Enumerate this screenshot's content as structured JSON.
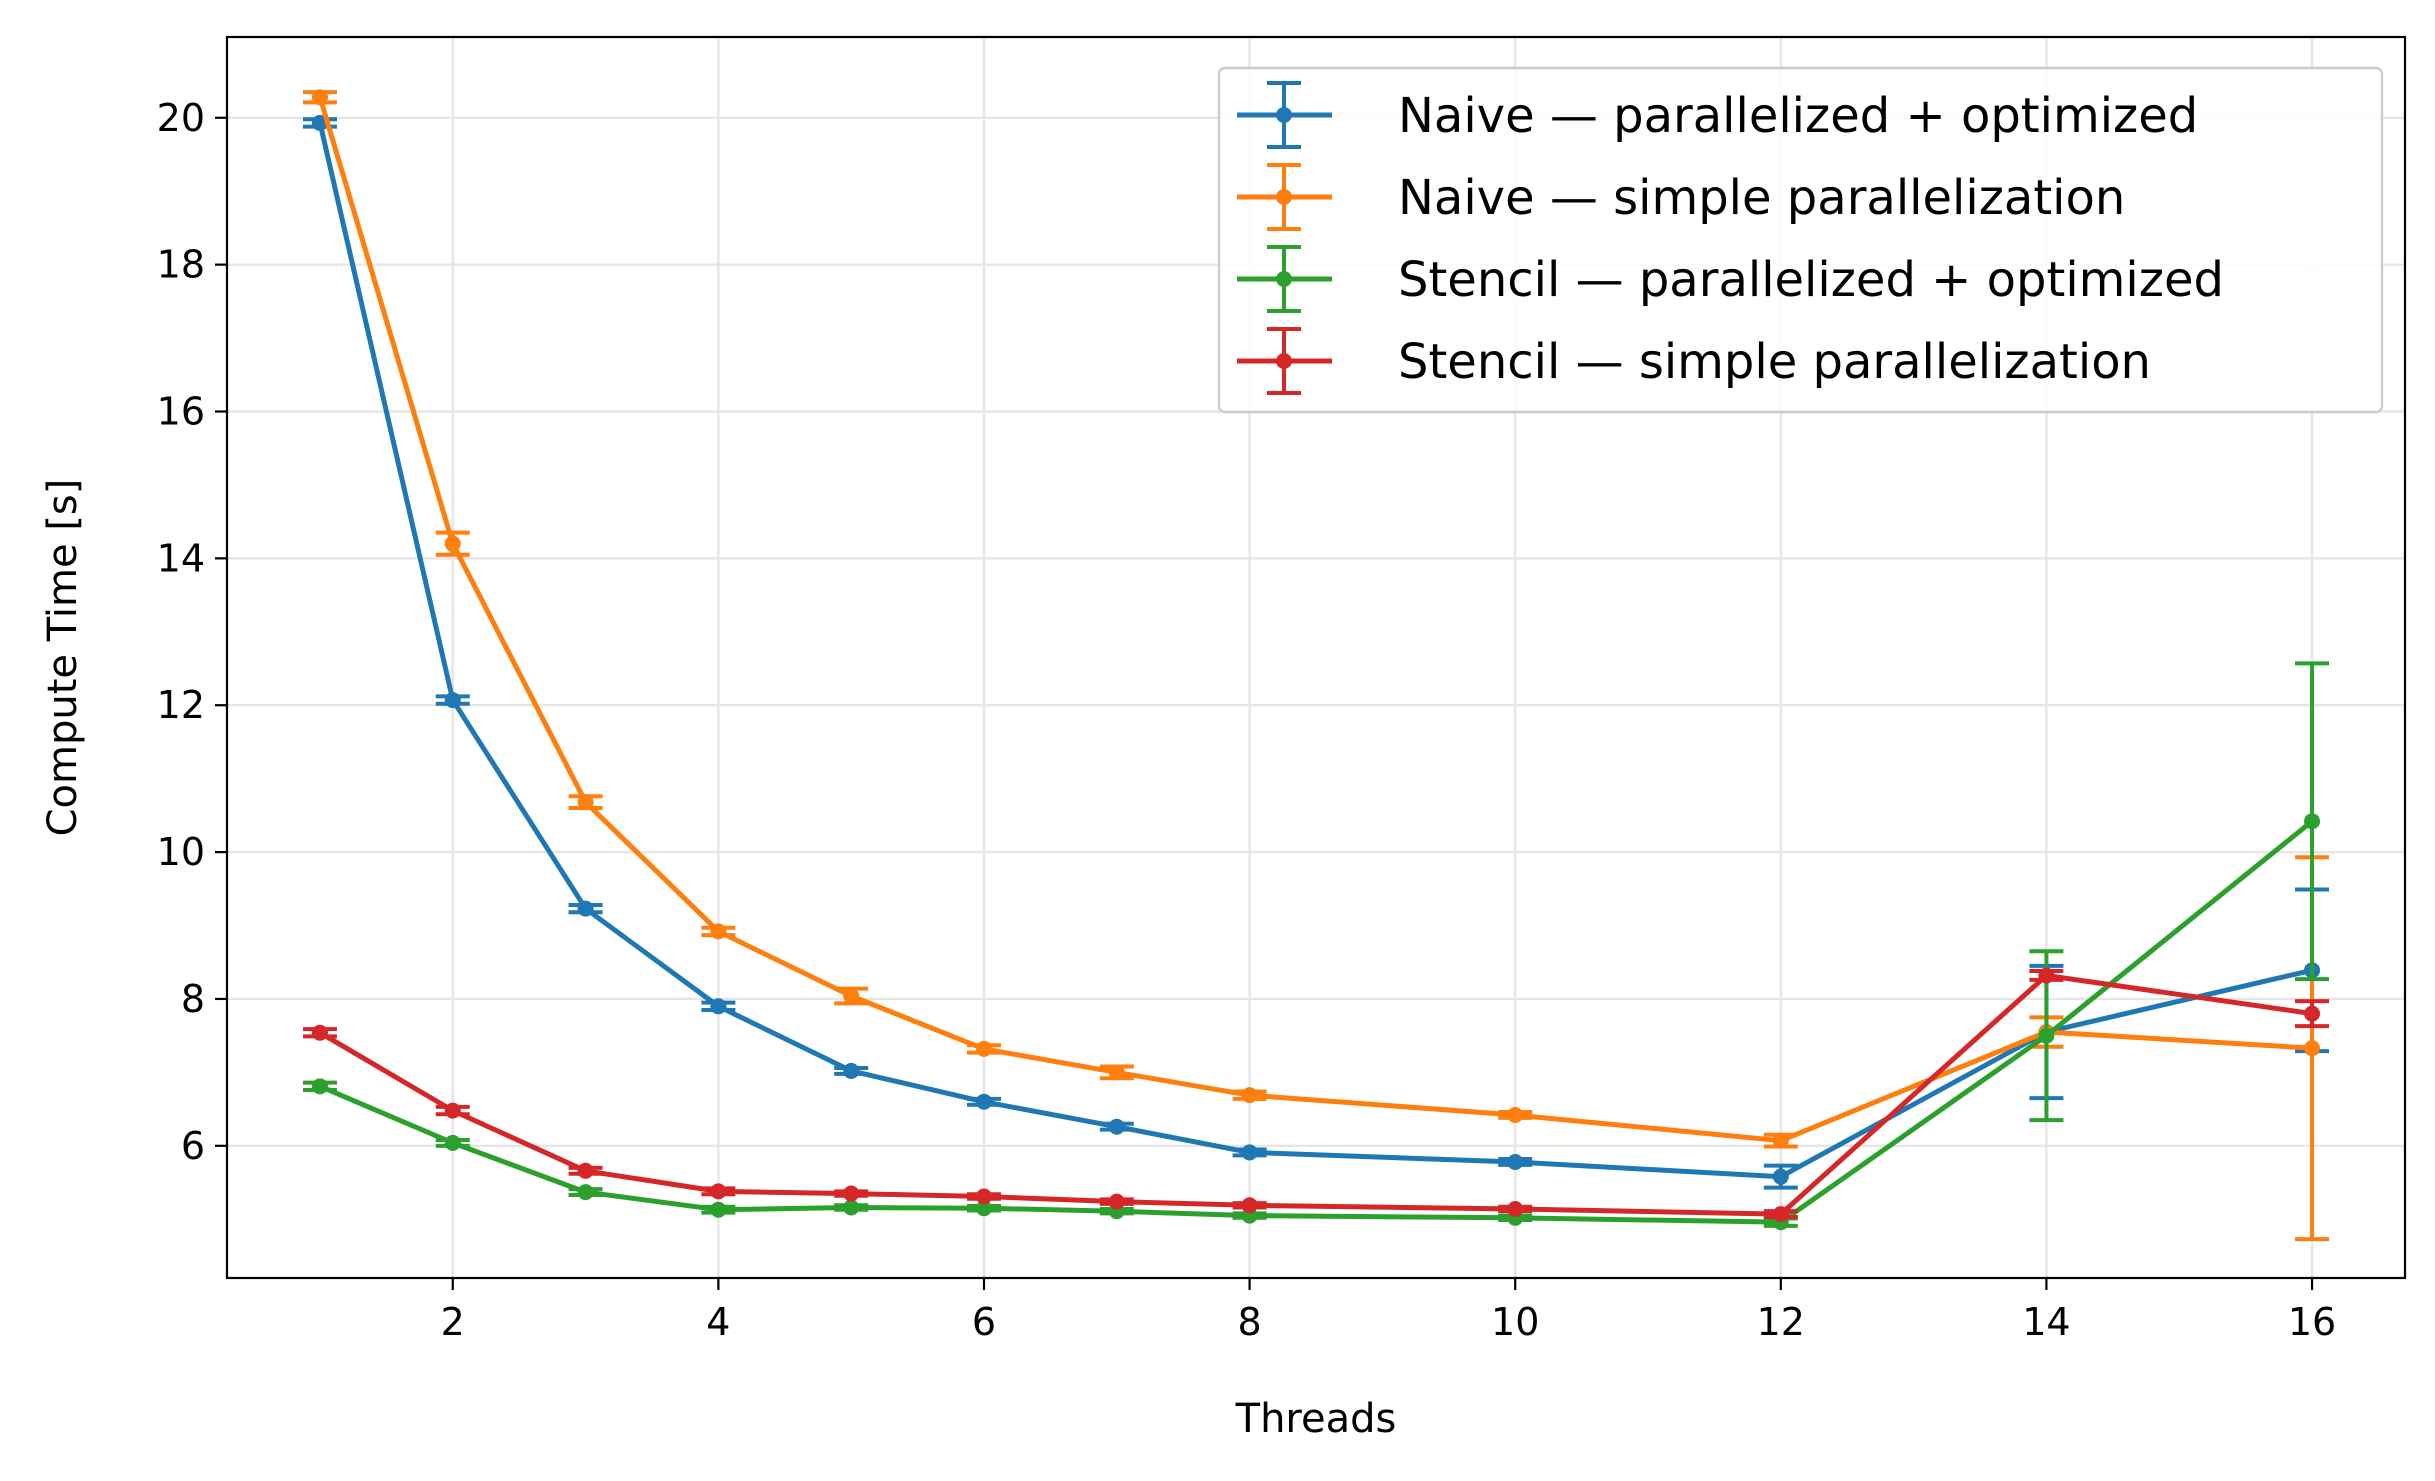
{
  "chart_data": {
    "type": "line",
    "title": "",
    "xlabel": "Threads",
    "ylabel": "Compute Time [s]",
    "xlim": [
      0.3,
      16.7
    ],
    "ylim": [
      4.2,
      21.1
    ],
    "xticks": [
      2,
      4,
      6,
      8,
      10,
      12,
      14,
      16
    ],
    "yticks": [
      6,
      8,
      10,
      12,
      14,
      16,
      18,
      20
    ],
    "grid": true,
    "legend_position": "top-right",
    "x": [
      1,
      2,
      3,
      4,
      5,
      6,
      7,
      8,
      10,
      12,
      14,
      16
    ],
    "series": [
      {
        "name": "Naive — parallelized + optimized",
        "color": "#1f77b4",
        "values": [
          19.93,
          12.07,
          9.23,
          7.9,
          7.02,
          6.6,
          6.26,
          5.91,
          5.78,
          5.58,
          7.55,
          8.39
        ],
        "errors": [
          0.05,
          0.05,
          0.05,
          0.05,
          0.04,
          0.04,
          0.04,
          0.04,
          0.04,
          0.15,
          0.9,
          1.1
        ]
      },
      {
        "name": "Naive — simple parallelization",
        "color": "#ff7f0e",
        "values": [
          20.28,
          14.2,
          10.68,
          8.92,
          8.04,
          7.32,
          7.0,
          6.69,
          6.42,
          6.07,
          7.55,
          7.33
        ],
        "errors": [
          0.07,
          0.15,
          0.08,
          0.05,
          0.1,
          0.05,
          0.08,
          0.05,
          0.04,
          0.08,
          0.2,
          2.6
        ]
      },
      {
        "name": "Stencil — parallelized + optimized",
        "color": "#2ca02c",
        "values": [
          6.81,
          6.04,
          5.37,
          5.13,
          5.16,
          5.15,
          5.11,
          5.05,
          5.02,
          4.96,
          7.5,
          10.42
        ],
        "errors": [
          0.05,
          0.04,
          0.04,
          0.04,
          0.03,
          0.03,
          0.03,
          0.03,
          0.03,
          0.05,
          1.15,
          2.15
        ]
      },
      {
        "name": "Stencil — simple parallelization",
        "color": "#d62728",
        "values": [
          7.54,
          6.48,
          5.66,
          5.38,
          5.35,
          5.31,
          5.24,
          5.19,
          5.14,
          5.07,
          8.32,
          7.8
        ],
        "errors": [
          0.05,
          0.05,
          0.04,
          0.04,
          0.03,
          0.03,
          0.03,
          0.03,
          0.03,
          0.04,
          0.06,
          0.17
        ]
      }
    ]
  }
}
